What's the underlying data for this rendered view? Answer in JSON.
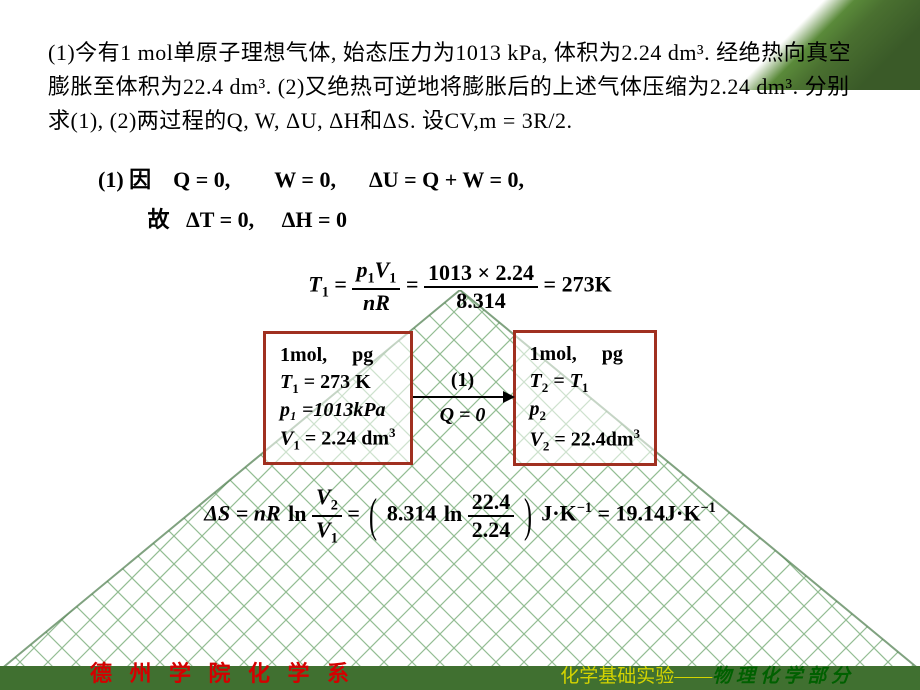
{
  "problem": "(1)今有1 mol单原子理想气体, 始态压力为1013 kPa, 体积为2.24 dm³. 经绝热向真空膨胀至体积为22.4 dm³. (2)又绝热可逆地将膨胀后的上述气体压缩为2.24 dm³.  分别求(1), (2)两过程的Q, W, ΔU, ΔH和ΔS. 设CV,m = 3R/2.",
  "sol1_line1": "(1) 因 Q = 0,  W = 0,  ΔU = Q + W = 0,",
  "sol1_line2": "   故  ΔT = 0,  ΔH = 0",
  "t1_eq": {
    "lhs": "T",
    "lhs_sub": "1",
    "num1a": "p",
    "num1a_sub": "1",
    "num1b": "V",
    "num1b_sub": "1",
    "den1": "nR",
    "num2": "1013 × 2.24",
    "den2": "8.314",
    "rhs_val": "273",
    "rhs_unit": "K"
  },
  "state1": {
    "l1": "1mol,  pg",
    "l2a": "T",
    "l2sub": "1",
    "l2b": " = 273 K",
    "l3": "p₁ =1013kPa",
    "l4a": "V",
    "l4sub": "1",
    "l4b": " = 2.24 dm",
    "l4sup": "3"
  },
  "arrow": {
    "top": "(1)",
    "bot": "Q = 0"
  },
  "state2": {
    "l1": "1mol,  pg",
    "l2a": "T",
    "l2asub": "2",
    "l2b": " = T",
    "l2bsub": "1",
    "l3": "p",
    "l3sub": "2",
    "l4a": "V",
    "l4sub": "2",
    "l4b": " = 22.4dm",
    "l4sup": "3"
  },
  "ds": {
    "lhs": "ΔS = nR",
    "ln": "ln",
    "num1a": "V",
    "num1sub": "2",
    "den1a": "V",
    "den1sub": "1",
    "mid": "8.314",
    "num2": "22.4",
    "den2": "2.24",
    "unit1": "J·K",
    "exp1": "−1",
    "val": " = 19.14J·K",
    "exp2": "−1"
  },
  "footer_left": "德 州 学 院 化 学 系",
  "footer_right_1": "化学基础实验——",
  "footer_right_2": "物 理 化 学 部 分",
  "colors": {
    "box_border": "#a03020",
    "footer_bg": "#407030",
    "dept_text": "#d40000",
    "course_text1": "#d4d400",
    "course_text2": "#006000",
    "grid_line": "#5a9a5a"
  }
}
